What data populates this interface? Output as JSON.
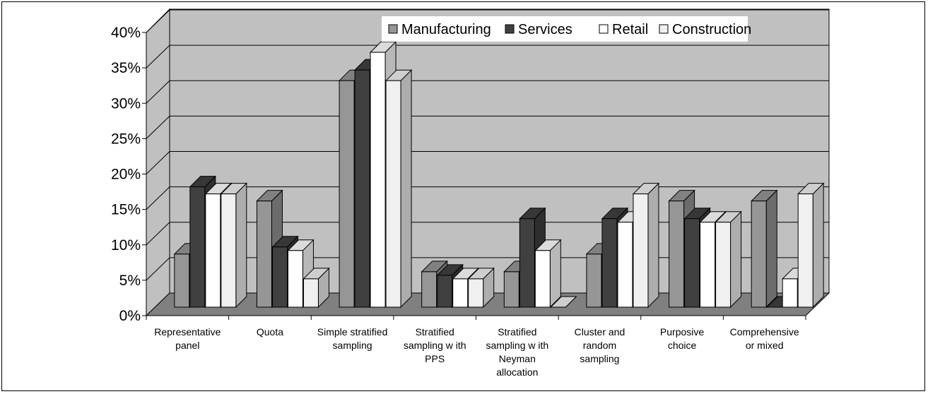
{
  "chart_data": {
    "type": "bar",
    "style": "3d-clustered-column",
    "categories": [
      [
        "Representative",
        "panel"
      ],
      [
        "Quota"
      ],
      [
        "Simple stratified",
        "sampling"
      ],
      [
        "Stratified",
        "sampling w ith",
        "PPS"
      ],
      [
        "Stratified",
        "sampling w ith",
        "Neyman",
        "allocation"
      ],
      [
        "Cluster and",
        "random",
        "sampling"
      ],
      [
        "Purposive",
        "choice"
      ],
      [
        "Comprehensive",
        "or mixed"
      ]
    ],
    "series": [
      {
        "name": "Manufacturing",
        "color": "#969696",
        "values": [
          7.5,
          15,
          32,
          5,
          5,
          7.5,
          15,
          15
        ]
      },
      {
        "name": "Services",
        "color": "#404040",
        "values": [
          17,
          8.5,
          33.5,
          4.5,
          12.5,
          12.5,
          12.5,
          0
        ]
      },
      {
        "name": "Retail",
        "color": "#ffffff",
        "values": [
          16,
          8,
          36,
          4,
          8,
          12,
          12,
          4
        ]
      },
      {
        "name": "Construction",
        "color": "#f0f0f0",
        "values": [
          16,
          4,
          32,
          4,
          0,
          16,
          12,
          16
        ]
      }
    ],
    "ylim": [
      0,
      40
    ],
    "yticks": [
      "0%",
      "5%",
      "10%",
      "15%",
      "20%",
      "25%",
      "30%",
      "35%",
      "40%"
    ],
    "grid": true,
    "legend": "top-center",
    "wall_color": "#c0c0c0",
    "floor_color": "#808080"
  }
}
